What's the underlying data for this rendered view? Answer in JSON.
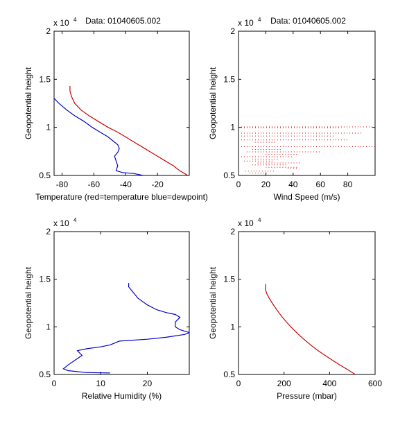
{
  "figure": {
    "background": "#ffffff",
    "axis_color": "#000000"
  },
  "chart_data": [
    {
      "type": "line",
      "title": "Data: 01040605.002",
      "xlabel": "Temperature (red=temperature blue=dewpoint)",
      "ylabel": "Geopotential height",
      "y_exponent_label": "x 10",
      "y_exponent": "4",
      "xlim": [
        -85,
        0
      ],
      "ylim": [
        5000,
        20000
      ],
      "xticks": [
        -80,
        -60,
        -40,
        -20
      ],
      "yticks": [
        5000,
        10000,
        15000,
        20000
      ],
      "ytick_labels": [
        "0.5",
        "1",
        "1.5",
        "2"
      ],
      "series": [
        {
          "color": "#cc0000",
          "style": "line",
          "points": [
            [
              -1,
              5000
            ],
            [
              -3,
              5200
            ],
            [
              -6,
              5500
            ],
            [
              -10,
              6000
            ],
            [
              -16,
              6600
            ],
            [
              -22,
              7200
            ],
            [
              -28,
              7800
            ],
            [
              -34,
              8400
            ],
            [
              -40,
              9000
            ],
            [
              -45,
              9500
            ],
            [
              -51,
              10000
            ],
            [
              -57,
              10600
            ],
            [
              -63,
              11200
            ],
            [
              -68,
              11800
            ],
            [
              -72,
              12500
            ],
            [
              -74,
              13200
            ],
            [
              -75,
              13800
            ],
            [
              -75,
              14300
            ]
          ]
        },
        {
          "color": "#0000cc",
          "style": "line",
          "points": [
            [
              -29,
              5000
            ],
            [
              -35,
              5200
            ],
            [
              -42,
              5300
            ],
            [
              -46,
              5500
            ],
            [
              -45,
              6000
            ],
            [
              -46,
              6500
            ],
            [
              -47,
              7000
            ],
            [
              -45,
              7400
            ],
            [
              -44,
              7800
            ],
            [
              -45,
              8200
            ],
            [
              -48,
              8600
            ],
            [
              -51,
              9000
            ],
            [
              -56,
              9500
            ],
            [
              -61,
              10000
            ],
            [
              -66,
              10600
            ],
            [
              -72,
              11200
            ],
            [
              -77,
              11800
            ],
            [
              -82,
              12500
            ],
            [
              -86,
              13200
            ],
            [
              -88,
              14000
            ],
            [
              -87,
              14500
            ]
          ]
        }
      ]
    },
    {
      "type": "scatter",
      "title": "Data: 01040605.002",
      "xlabel": "Wind Speed (m/s)",
      "ylabel": "Geopotential height",
      "y_exponent_label": "x 10",
      "y_exponent": "4",
      "xlim": [
        0,
        100
      ],
      "ylim": [
        5000,
        20000
      ],
      "xticks": [
        0,
        20,
        40,
        60,
        80
      ],
      "yticks": [
        5000,
        10000,
        15000,
        20000
      ],
      "ytick_labels": [
        "0.5",
        "1",
        "1.5",
        "2"
      ],
      "series": [
        {
          "color": "#cc0000",
          "style": "dotted-segments",
          "segments": [
            [
              [
                2,
                10050
              ],
              [
                98,
                10050
              ]
            ],
            [
              [
                2,
                9950
              ],
              [
                75,
                9950
              ]
            ],
            [
              [
                2,
                9400
              ],
              [
                90,
                9400
              ]
            ],
            [
              [
                2,
                9100
              ],
              [
                70,
                9100
              ]
            ],
            [
              [
                2,
                8700
              ],
              [
                80,
                8700
              ]
            ],
            [
              [
                12,
                8450
              ],
              [
                28,
                8450
              ]
            ],
            [
              [
                2,
                8000
              ],
              [
                100,
                8000
              ]
            ],
            [
              [
                10,
                7700
              ],
              [
                32,
                7700
              ]
            ],
            [
              [
                6,
                7450
              ],
              [
                60,
                7450
              ]
            ],
            [
              [
                20,
                7200
              ],
              [
                44,
                7200
              ]
            ],
            [
              [
                2,
                6950
              ],
              [
                40,
                6950
              ]
            ],
            [
              [
                10,
                6700
              ],
              [
                30,
                6700
              ]
            ],
            [
              [
                4,
                6500
              ],
              [
                26,
                6500
              ]
            ],
            [
              [
                14,
                6300
              ],
              [
                46,
                6300
              ]
            ],
            [
              [
                10,
                6100
              ],
              [
                36,
                6100
              ]
            ],
            [
              [
                20,
                5850
              ],
              [
                44,
                5850
              ]
            ],
            [
              [
                36,
                5700
              ],
              [
                44,
                5700
              ]
            ],
            [
              [
                5,
                5450
              ],
              [
                26,
                5450
              ]
            ],
            [
              [
                8,
                5250
              ],
              [
                22,
                5250
              ]
            ]
          ]
        }
      ]
    },
    {
      "type": "line",
      "title": "",
      "xlabel": "Relative Humidity (%)",
      "ylabel": "Geopotential height",
      "y_exponent_label": "x 10",
      "y_exponent": "4",
      "xlim": [
        0,
        29
      ],
      "ylim": [
        5000,
        20000
      ],
      "xticks": [
        0,
        10,
        20
      ],
      "yticks": [
        5000,
        10000,
        15000,
        20000
      ],
      "ytick_labels": [
        "0.5",
        "1",
        "1.5",
        "2"
      ],
      "series": [
        {
          "color": "#0000cc",
          "style": "line",
          "points": [
            [
              12,
              5150
            ],
            [
              7,
              5200
            ],
            [
              3,
              5400
            ],
            [
              2,
              5600
            ],
            [
              3,
              6000
            ],
            [
              4.5,
              6500
            ],
            [
              6,
              7000
            ],
            [
              5,
              7500
            ],
            [
              7,
              7700
            ],
            [
              10,
              7900
            ],
            [
              12,
              8100
            ],
            [
              13,
              8300
            ],
            [
              14,
              8500
            ],
            [
              20,
              8700
            ],
            [
              24,
              8900
            ],
            [
              28,
              9200
            ],
            [
              29,
              9400
            ],
            [
              27,
              9700
            ],
            [
              26,
              10000
            ],
            [
              26,
              10500
            ],
            [
              27,
              11000
            ],
            [
              26,
              11300
            ],
            [
              24,
              11500
            ],
            [
              22,
              11800
            ],
            [
              20,
              12300
            ],
            [
              18,
              13000
            ],
            [
              17,
              13600
            ],
            [
              16,
              14200
            ],
            [
              16,
              14600
            ]
          ]
        }
      ]
    },
    {
      "type": "line",
      "title": "",
      "xlabel": "Pressure (mbar)",
      "ylabel": "Geopotential height",
      "y_exponent_label": "x 10",
      "y_exponent": "4",
      "xlim": [
        0,
        600
      ],
      "ylim": [
        5000,
        20000
      ],
      "xticks": [
        0,
        200,
        400,
        600
      ],
      "yticks": [
        5000,
        10000,
        15000,
        20000
      ],
      "ytick_labels": [
        "0.5",
        "1",
        "1.5",
        "2"
      ],
      "series": [
        {
          "color": "#cc0000",
          "style": "line",
          "points": [
            [
              513,
              5000
            ],
            [
              480,
              5500
            ],
            [
              445,
              6000
            ],
            [
              412,
              6500
            ],
            [
              380,
              7000
            ],
            [
              350,
              7500
            ],
            [
              322,
              8000
            ],
            [
              297,
              8500
            ],
            [
              273,
              9000
            ],
            [
              251,
              9500
            ],
            [
              230,
              10000
            ],
            [
              211,
              10500
            ],
            [
              193,
              11000
            ],
            [
              177,
              11500
            ],
            [
              162,
              12000
            ],
            [
              148,
              12500
            ],
            [
              135,
              13000
            ],
            [
              124,
              13500
            ],
            [
              118,
              14000
            ],
            [
              120,
              14500
            ]
          ]
        }
      ]
    }
  ]
}
